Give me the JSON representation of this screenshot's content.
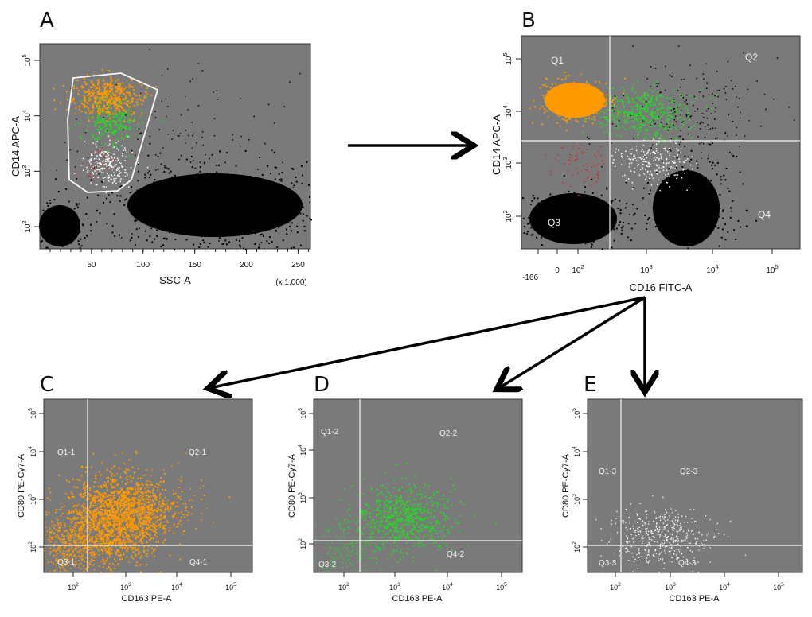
{
  "chart_data": [
    {
      "id": "A",
      "type": "scatter",
      "panel_label": "A",
      "xlabel": "SSC-A",
      "ylabel": "CD14 APC-A",
      "x_scale_note": "(x 1,000)",
      "xticks": [
        "50",
        "100",
        "150",
        "200",
        "250"
      ],
      "xtick_values": [
        50,
        100,
        150,
        200,
        250
      ],
      "yticks": [
        "10^2",
        "10^3",
        "10^4",
        "10^5"
      ],
      "ytick_exponents": [
        2,
        3,
        4,
        5
      ],
      "xlim": [
        0,
        262
      ],
      "ylim_log10": [
        1.6,
        5.3
      ],
      "gate": "polygon around CD14-positive monocytes (SSC ~40-115, CD14 10^2.8-10^4.5)",
      "populations": [
        {
          "name": "orange",
          "color": "#ff9900"
        },
        {
          "name": "green",
          "color": "#22dd22"
        },
        {
          "name": "white",
          "color": "#ffffff"
        },
        {
          "name": "red",
          "color": "#dd2222"
        }
      ]
    },
    {
      "id": "B",
      "type": "scatter",
      "panel_label": "B",
      "xlabel": "CD16 FITC-A",
      "ylabel": "CD14 APC-A",
      "xticks": [
        "-166",
        "0",
        "10^2",
        "10^3",
        "10^4",
        "10^5"
      ],
      "yticks": [
        "10^2",
        "10^3",
        "10^4",
        "10^5"
      ],
      "quadrants": [
        "Q1",
        "Q2",
        "Q3",
        "Q4"
      ],
      "quadrant_cut_x": 300,
      "quadrant_cut_y": 3000
    },
    {
      "id": "C",
      "type": "scatter",
      "panel_label": "C",
      "xlabel": "CD163 PE-A",
      "ylabel": "CD80 PE-Cy7-A",
      "xticks": [
        "10^2",
        "10^3",
        "10^4",
        "10^5"
      ],
      "yticks": [
        "10^2",
        "10^3",
        "10^4",
        "10^5"
      ],
      "quadrants": [
        "Q1-1",
        "Q2-1",
        "Q3-1",
        "Q4-1"
      ],
      "population_color": "#ff9900"
    },
    {
      "id": "D",
      "type": "scatter",
      "panel_label": "D",
      "xlabel": "CD163 PE-A",
      "ylabel": "CD80 PE-Cy7-A",
      "xticks": [
        "10^2",
        "10^3",
        "10^4",
        "10^5"
      ],
      "yticks": [
        "10^2",
        "10^3",
        "10^4",
        "10^5"
      ],
      "quadrants": [
        "Q1-2",
        "Q2-2",
        "Q3-2",
        "Q4-2"
      ],
      "population_color": "#22dd22"
    },
    {
      "id": "E",
      "type": "scatter",
      "panel_label": "E",
      "xlabel": "CD163 PE-A",
      "ylabel": "CD80 PE-Cy7-A",
      "xticks": [
        "10^2",
        "10^3",
        "10^4",
        "10^5"
      ],
      "yticks": [
        "10^2",
        "10^3",
        "10^4",
        "10^5"
      ],
      "quadrants": [
        "Q1-3",
        "Q2-3",
        "Q3-3",
        "Q4-3"
      ],
      "population_color": "#ffffff"
    }
  ],
  "colors": {
    "plot_background": "#7a7a7a",
    "events_black": "#000000",
    "orange": "#ff9900",
    "green": "#22dd22",
    "white": "#ffffff",
    "red": "#dd2222"
  }
}
